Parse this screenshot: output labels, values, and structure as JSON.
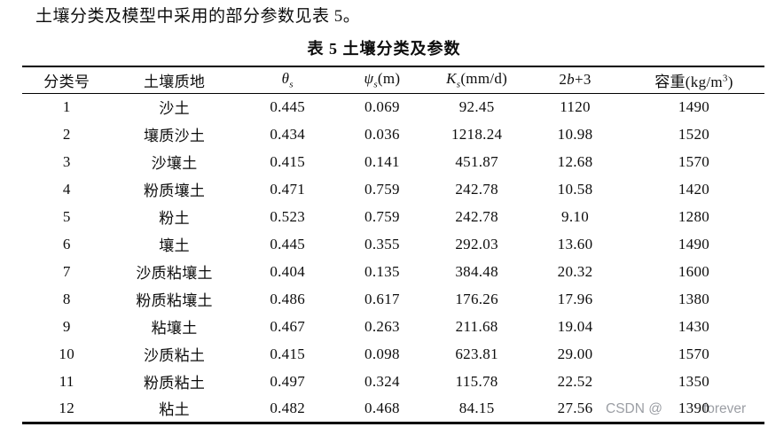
{
  "page": {
    "intro_text": "土壤分类及模型中采用的部分参数见表 5。",
    "table_title": "表 5 土壤分类及参数"
  },
  "table": {
    "headers": [
      {
        "parts": [
          {
            "t": "分类号"
          }
        ]
      },
      {
        "parts": [
          {
            "t": "土壤质地"
          }
        ]
      },
      {
        "parts": [
          {
            "t": "θ",
            "s": "i"
          },
          {
            "t": "s",
            "s": "subi"
          }
        ]
      },
      {
        "parts": [
          {
            "t": "ψ",
            "s": "i"
          },
          {
            "t": "s",
            "s": "subi"
          },
          {
            "t": "(m)"
          }
        ]
      },
      {
        "parts": [
          {
            "t": "K",
            "s": "i"
          },
          {
            "t": "s",
            "s": "subi"
          },
          {
            "t": "(mm/d)"
          }
        ]
      },
      {
        "parts": [
          {
            "t": "2"
          },
          {
            "t": "b",
            "s": "i"
          },
          {
            "t": "+3"
          }
        ]
      },
      {
        "parts": [
          {
            "t": "容重(kg/m"
          },
          {
            "t": "3",
            "s": "sup"
          },
          {
            "t": ")"
          }
        ]
      }
    ],
    "rows": [
      [
        "1",
        "沙土",
        "0.445",
        "0.069",
        "92.45",
        "1120",
        "1490"
      ],
      [
        "2",
        "壤质沙土",
        "0.434",
        "0.036",
        "1218.24",
        "10.98",
        "1520"
      ],
      [
        "3",
        "沙壤土",
        "0.415",
        "0.141",
        "451.87",
        "12.68",
        "1570"
      ],
      [
        "4",
        "粉质壤土",
        "0.471",
        "0.759",
        "242.78",
        "10.58",
        "1420"
      ],
      [
        "5",
        "粉土",
        "0.523",
        "0.759",
        "242.78",
        "9.10",
        "1280"
      ],
      [
        "6",
        "壤土",
        "0.445",
        "0.355",
        "292.03",
        "13.60",
        "1490"
      ],
      [
        "7",
        "沙质粘壤土",
        "0.404",
        "0.135",
        "384.48",
        "20.32",
        "1600"
      ],
      [
        "8",
        "粉质粘壤土",
        "0.486",
        "0.617",
        "176.26",
        "17.96",
        "1380"
      ],
      [
        "9",
        "粘壤土",
        "0.467",
        "0.263",
        "211.68",
        "19.04",
        "1430"
      ],
      [
        "10",
        "沙质粘土",
        "0.415",
        "0.098",
        "623.81",
        "29.00",
        "1570"
      ],
      [
        "11",
        "粉质粘土",
        "0.497",
        "0.324",
        "115.78",
        "22.52",
        "1350"
      ],
      [
        "12",
        "粘土",
        "0.482",
        "0.468",
        "84.15",
        "27.56",
        "1390"
      ]
    ]
  },
  "watermark": {
    "prefix": "CSDN @",
    "suffix": "forever"
  }
}
